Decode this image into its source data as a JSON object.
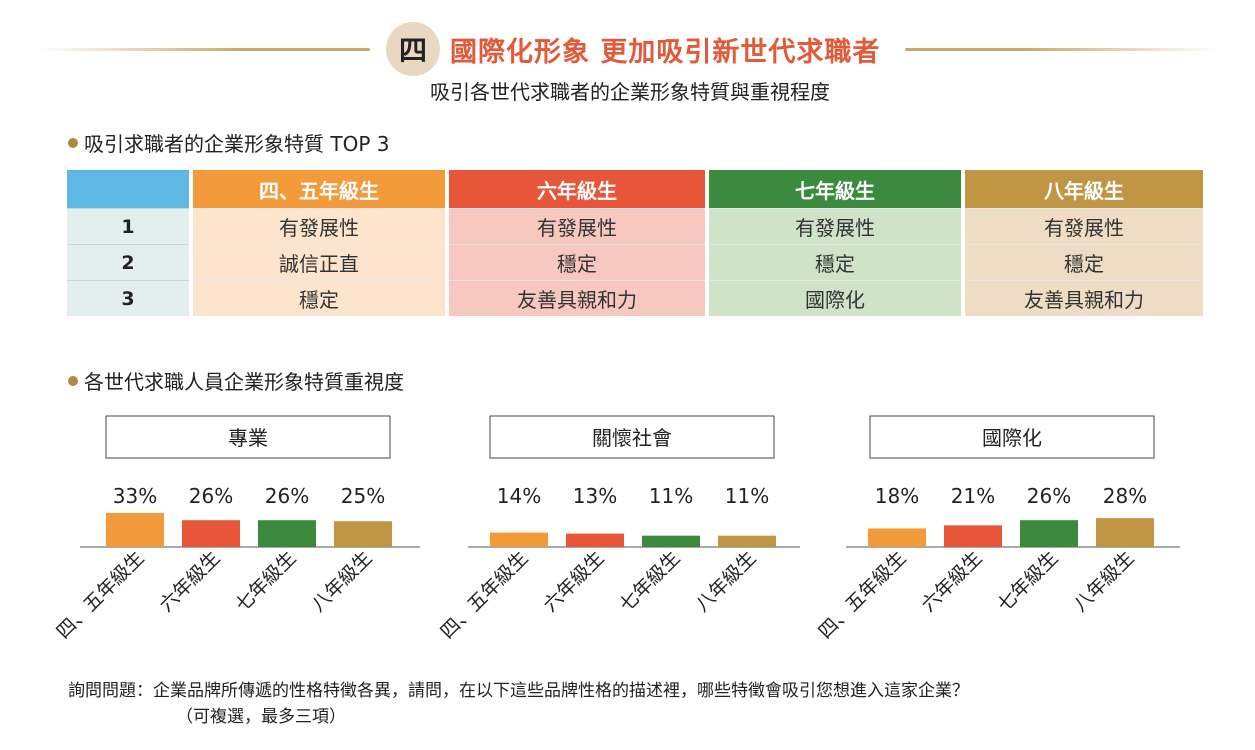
{
  "header": {
    "badge": "四",
    "title": "國際化形象 更加吸引新世代求職者",
    "subtitle": "吸引各世代求職者的企業形象特質與重視程度"
  },
  "section1_label": "吸引求職者的企業形象特質 TOP 3",
  "section2_label": "各世代求職人員企業形象特質重視度",
  "table": {
    "headers": [
      "",
      "四、五年級生",
      "六年級生",
      "七年級生",
      "八年級生"
    ],
    "rows": [
      {
        "rank": "1",
        "cells": [
          "有發展性",
          "有發展性",
          "有發展性",
          "有發展性"
        ]
      },
      {
        "rank": "2",
        "cells": [
          "誠信正直",
          "穩定",
          "穩定",
          "穩定"
        ]
      },
      {
        "rank": "3",
        "cells": [
          "穩定",
          "友善具親和力",
          "國際化",
          "友善具親和力"
        ]
      }
    ]
  },
  "colors": {
    "gen1": "#f39a3b",
    "gen2": "#e8563a",
    "gen3": "#3c8a3e",
    "gen4": "#c09645",
    "rank_header": "#5fb7e4",
    "title": "#e25a3a"
  },
  "chart_data": [
    {
      "type": "bar",
      "title": "專業",
      "categories": [
        "四、五年級生",
        "六年級生",
        "七年級生",
        "八年級生"
      ],
      "values": [
        33,
        26,
        26,
        25
      ],
      "value_labels": [
        "33%",
        "26%",
        "26%",
        "25%"
      ],
      "ylim": [
        0,
        100
      ],
      "grid": false
    },
    {
      "type": "bar",
      "title": "關懷社會",
      "categories": [
        "四、五年級生",
        "六年級生",
        "七年級生",
        "八年級生"
      ],
      "values": [
        14,
        13,
        11,
        11
      ],
      "value_labels": [
        "14%",
        "13%",
        "11%",
        "11%"
      ],
      "ylim": [
        0,
        100
      ],
      "grid": false
    },
    {
      "type": "bar",
      "title": "國際化",
      "categories": [
        "四、五年級生",
        "六年級生",
        "七年級生",
        "八年級生"
      ],
      "values": [
        18,
        21,
        26,
        28
      ],
      "value_labels": [
        "18%",
        "21%",
        "26%",
        "28%"
      ],
      "ylim": [
        0,
        100
      ],
      "grid": false
    }
  ],
  "footnote": {
    "line1": "詢問問題：企業品牌所傳遞的性格特徵各異，請問，在以下這些品牌性格的描述裡，哪些特徵會吸引您想進入這家企業？",
    "line2": "（可複選，最多三項）"
  }
}
